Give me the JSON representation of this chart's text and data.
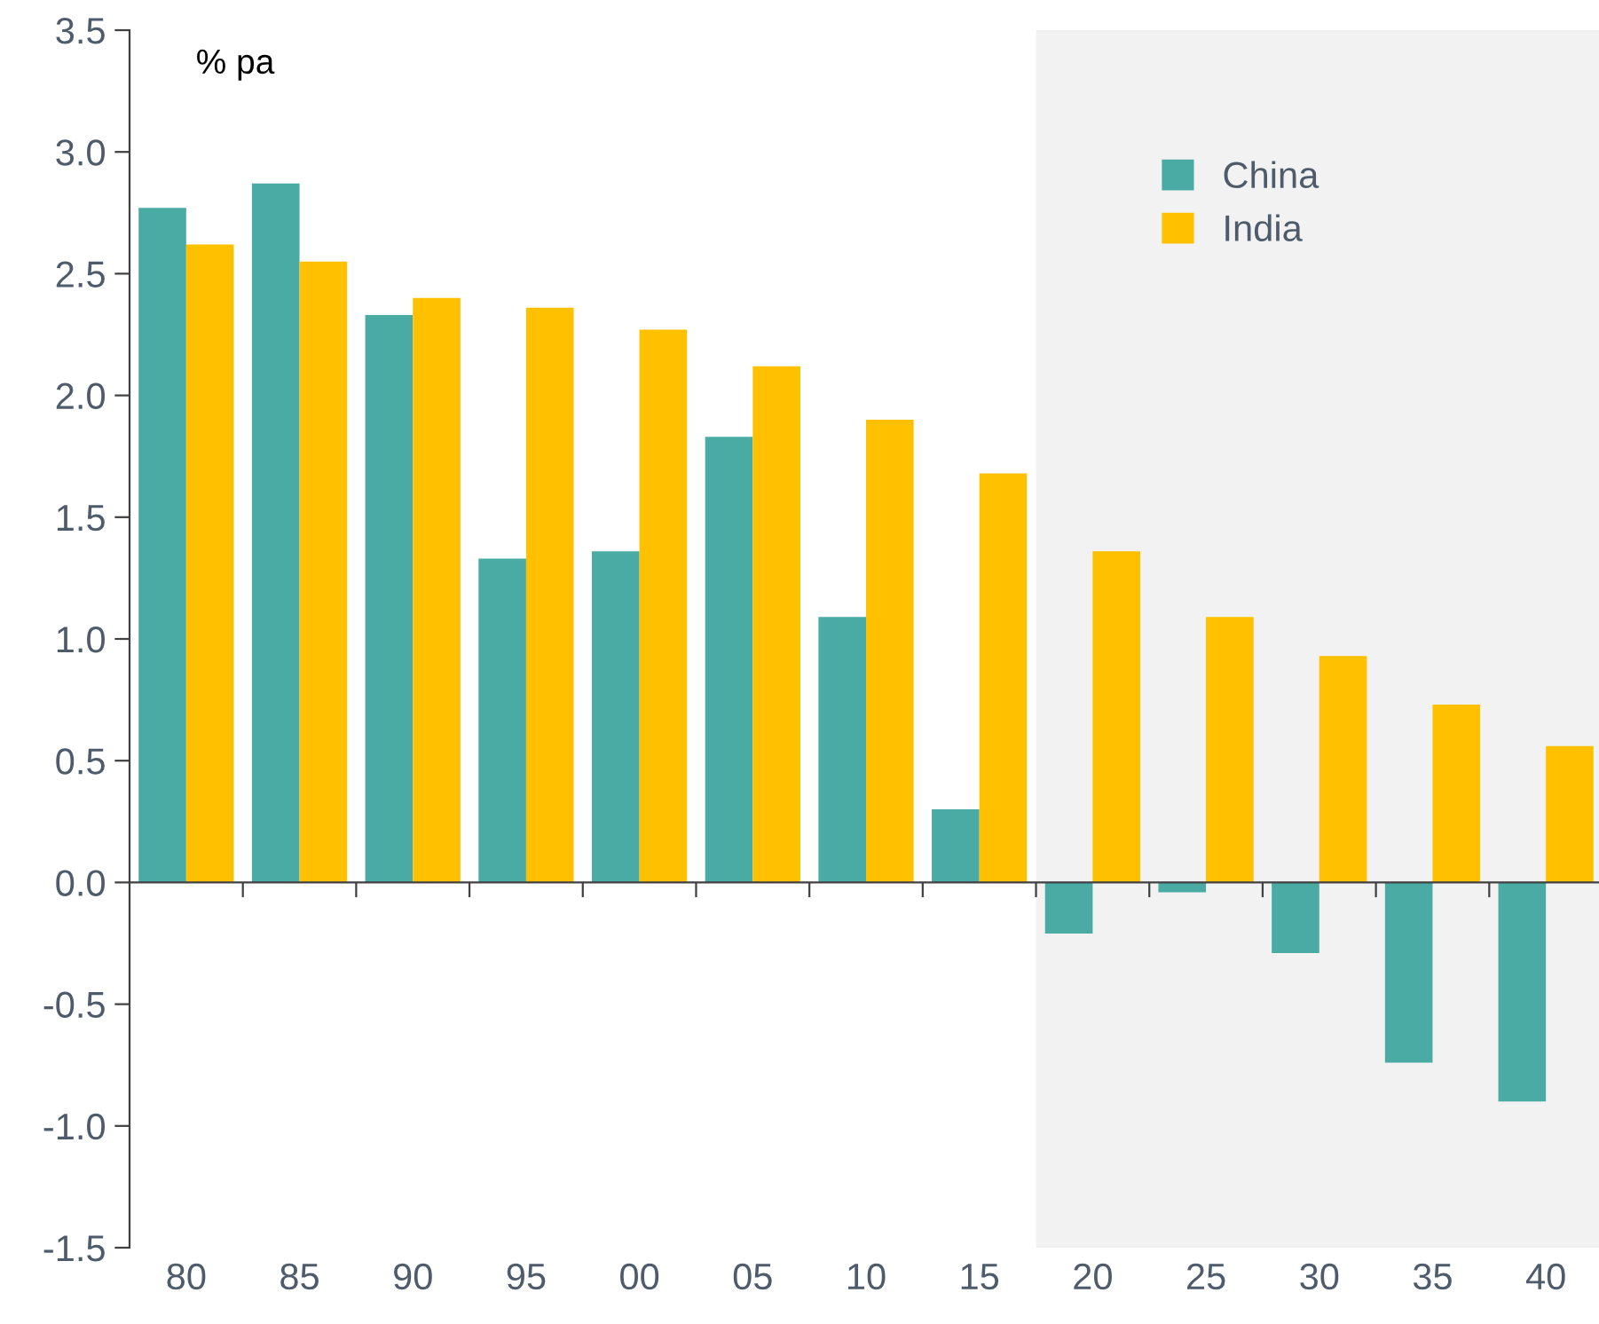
{
  "chart_data": {
    "type": "bar",
    "ylabel": "% pa",
    "categories": [
      "80",
      "85",
      "90",
      "95",
      "00",
      "05",
      "10",
      "15",
      "20",
      "25",
      "30",
      "35",
      "40"
    ],
    "series": [
      {
        "name": "China",
        "color": "#4aaba5",
        "values": [
          2.77,
          2.87,
          2.33,
          1.33,
          1.36,
          1.83,
          1.09,
          0.3,
          -0.21,
          -0.04,
          -0.29,
          -0.74,
          -0.9
        ]
      },
      {
        "name": "India",
        "color": "#ffc000",
        "values": [
          2.62,
          2.55,
          2.4,
          2.36,
          2.27,
          2.12,
          1.9,
          1.68,
          1.36,
          1.09,
          0.93,
          0.73,
          0.56
        ]
      }
    ],
    "bands": [
      {
        "axis": "x",
        "from": "20",
        "to": "40",
        "color": "#f2f2f2"
      }
    ],
    "ylim": [
      -1.5,
      3.5
    ],
    "yticks": [
      {
        "value": -1.5,
        "label": "-1.5"
      },
      {
        "value": -1.0,
        "label": "-1.0"
      },
      {
        "value": -0.5,
        "label": "-0.5"
      },
      {
        "value": 0,
        "label": "0.0"
      },
      {
        "value": 0.5,
        "label": "0.5"
      },
      {
        "value": 1.0,
        "label": "1.0"
      },
      {
        "value": 1.5,
        "label": "1.5"
      },
      {
        "value": 2.0,
        "label": "2.0"
      },
      {
        "value": 2.5,
        "label": "2.5"
      },
      {
        "value": 3.0,
        "label": "3.0"
      },
      {
        "value": 3.5,
        "label": "3.5"
      }
    ],
    "legend": "top right"
  }
}
